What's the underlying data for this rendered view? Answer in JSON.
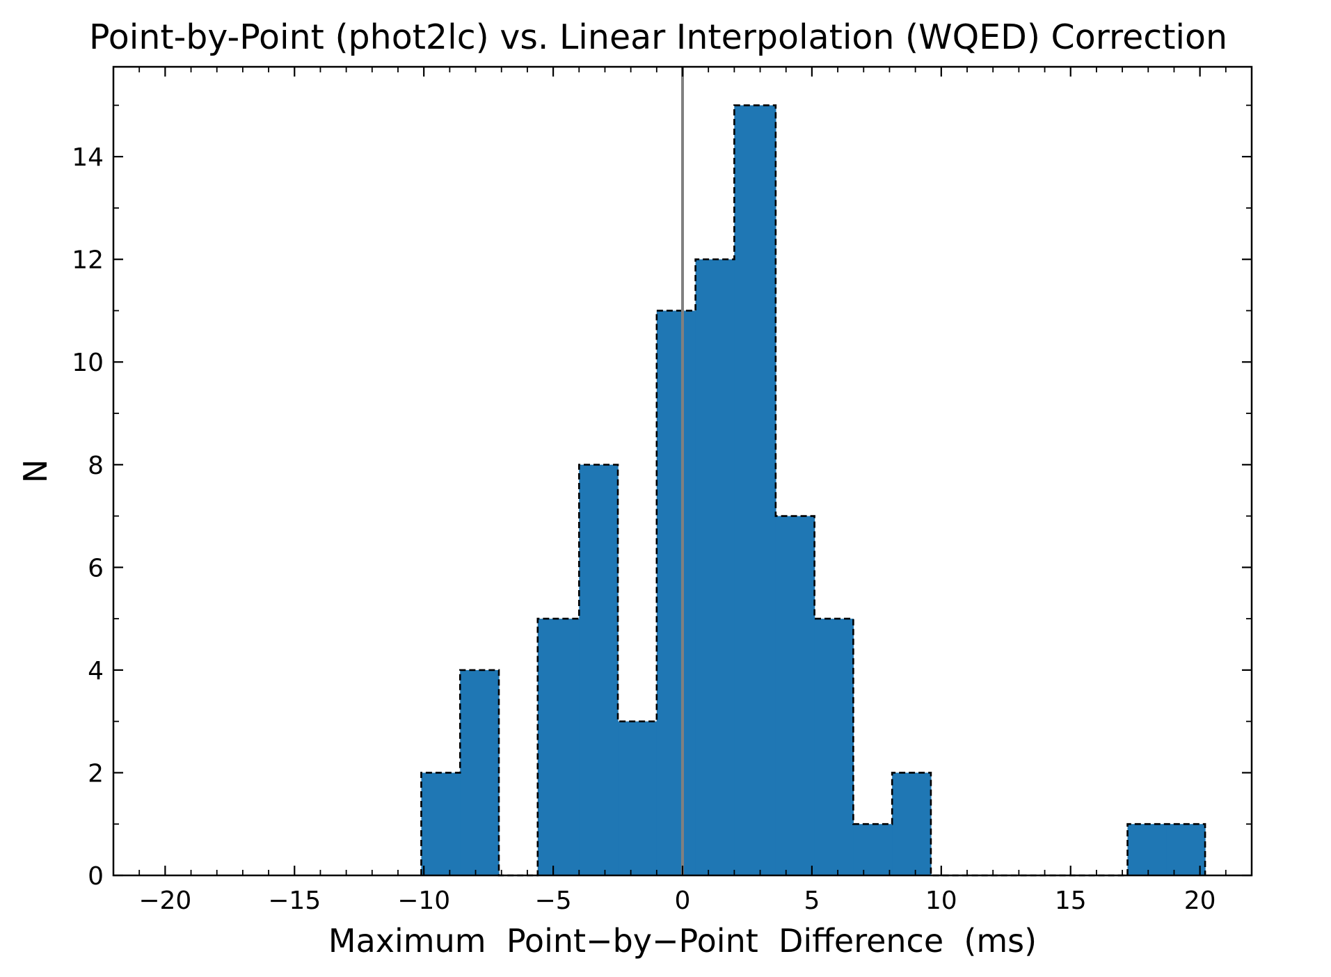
{
  "chart_data": {
    "type": "bar",
    "title": "Point-by-Point (phot2lc) vs. Linear Interpolation (WQED) Correction",
    "xlabel": "Maximum  Point−by−Point  Difference  (ms)",
    "ylabel": "N",
    "xlim": [
      -22.0,
      22.0
    ],
    "ylim": [
      0,
      15.75
    ],
    "x_ticks": [
      -20,
      -15,
      -10,
      -5,
      0,
      5,
      10,
      15,
      20
    ],
    "x_tick_labels": [
      "−20",
      "−15",
      "−10",
      "−5",
      "0",
      "5",
      "10",
      "15",
      "20"
    ],
    "y_ticks": [
      0,
      2,
      4,
      6,
      8,
      10,
      12,
      14
    ],
    "y_tick_labels": [
      "0",
      "2",
      "4",
      "6",
      "8",
      "10",
      "12",
      "14"
    ],
    "bin_edges": [
      -10.1,
      -8.6,
      -7.1,
      -5.6,
      -4.0,
      -2.5,
      -1.0,
      0.5,
      2.0,
      3.6,
      5.1,
      6.6,
      8.1,
      9.6,
      11.1,
      12.6,
      14.2,
      15.7,
      17.2,
      18.7,
      20.2
    ],
    "counts": [
      2,
      4,
      0,
      5,
      8,
      3,
      11,
      12,
      15,
      7,
      5,
      1,
      2,
      0,
      0,
      0,
      0,
      0,
      1,
      1
    ],
    "reference_line_x": 0,
    "grid": false,
    "colors": {
      "bar_fill": "#1f77b4",
      "bar_edge": "#000000",
      "reference_line": "#808080"
    }
  }
}
